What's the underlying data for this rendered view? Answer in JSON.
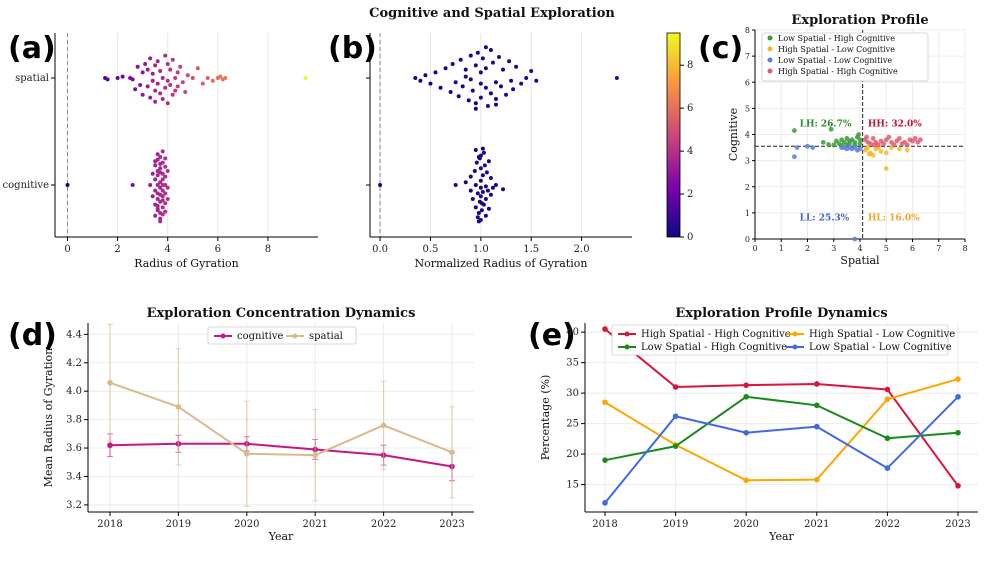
{
  "figure_title": "Cognitive and Spatial Exploration",
  "panel_labels": [
    "(a)",
    "(b)",
    "(c)",
    "(d)",
    "(e)"
  ],
  "chart_data": [
    {
      "id": "a",
      "type": "scatter",
      "title": "",
      "xlabel": "Radius of Gyration",
      "ylabel": "",
      "categories": [
        "spatial",
        "cognitive"
      ],
      "xlim": [
        -0.5,
        10.0
      ],
      "xticks": [
        "0",
        "2",
        "4",
        "6",
        "8"
      ],
      "grid": "vertical",
      "reference_line_x": 0,
      "colormap": "plasma",
      "clim": [
        0,
        9.5
      ],
      "series": [
        {
          "category": "spatial",
          "x": [
            1.5,
            1.6,
            2.0,
            2.2,
            2.5,
            2.6,
            2.7,
            2.8,
            2.9,
            3.0,
            3.0,
            3.1,
            3.2,
            3.2,
            3.3,
            3.3,
            3.4,
            3.4,
            3.5,
            3.5,
            3.5,
            3.6,
            3.6,
            3.7,
            3.7,
            3.8,
            3.8,
            3.9,
            3.9,
            4.0,
            4.0,
            4.0,
            4.1,
            4.1,
            4.2,
            4.2,
            4.3,
            4.3,
            4.4,
            4.4,
            4.5,
            4.6,
            4.7,
            4.8,
            5.0,
            5.2,
            5.4,
            5.6,
            5.8,
            6.0,
            6.1,
            6.2,
            6.3,
            9.5
          ],
          "offset": [
            0.0,
            0.05,
            0.0,
            -0.05,
            0.0,
            0.05,
            0.4,
            -0.4,
            0.25,
            -0.2,
            0.6,
            -0.5,
            0.3,
            -0.3,
            0.7,
            -0.7,
            0.1,
            -0.15,
            0.45,
            -0.45,
            0.85,
            0.2,
            -0.6,
            0.55,
            -0.25,
            0.0,
            0.75,
            -0.8,
            0.35,
            0.1,
            -0.5,
            0.9,
            0.25,
            -0.3,
            0.6,
            -0.65,
            0.0,
            0.45,
            -0.2,
            0.3,
            -0.4,
            0.15,
            0.5,
            -0.1,
            0.0,
            -0.35,
            0.2,
            0.0,
            0.1,
            0.0,
            -0.05,
            0.05,
            0.0,
            0.0
          ]
        },
        {
          "category": "cognitive",
          "x": [
            0.0,
            2.6,
            3.3,
            3.4,
            3.4,
            3.5,
            3.5,
            3.5,
            3.5,
            3.6,
            3.6,
            3.6,
            3.6,
            3.6,
            3.6,
            3.7,
            3.7,
            3.7,
            3.7,
            3.7,
            3.7,
            3.8,
            3.8,
            3.8,
            3.8,
            3.8,
            3.8,
            3.8,
            3.9,
            3.9,
            3.9,
            3.9,
            3.9,
            3.9,
            4.0,
            4.0,
            4.0,
            3.5,
            3.6,
            3.7,
            3.8,
            3.7,
            3.6,
            3.8,
            3.7,
            3.6,
            3.7,
            3.8,
            3.9,
            3.5,
            3.6,
            3.7
          ],
          "offset": [
            0.0,
            0.0,
            0.0,
            0.4,
            -0.4,
            0.2,
            -0.2,
            0.7,
            -0.7,
            0.0,
            0.5,
            -0.5,
            0.9,
            -0.9,
            0.3,
            0.1,
            -0.1,
            0.6,
            -0.6,
            1.0,
            -1.0,
            0.2,
            -0.2,
            0.8,
            -0.8,
            0.4,
            -0.4,
            0.0,
            0.3,
            -0.3,
            0.65,
            -0.65,
            0.95,
            -0.95,
            0.1,
            -0.5,
            0.5,
            1.1,
            -1.1,
            1.2,
            -1.2,
            0.35,
            -0.35,
            1.05,
            -0.75,
            0.75,
            -0.45,
            0.55,
            0.0,
            -0.85,
            0.85,
            1.3
          ]
        }
      ]
    },
    {
      "id": "b",
      "type": "scatter",
      "title": "",
      "xlabel": "Normalized Radius of Gyration",
      "ylabel": "",
      "xlim": [
        -0.1,
        2.5
      ],
      "xticks": [
        "0.0",
        "0.5",
        "1.0",
        "1.5",
        "2.0"
      ],
      "grid": "vertical",
      "reference_line_x": 0,
      "colorbar_ticks": [
        "0",
        "2",
        "4",
        "6",
        "8"
      ],
      "series": [
        {
          "category": "spatial",
          "x": [
            0.35,
            0.4,
            0.45,
            0.5,
            0.55,
            0.6,
            0.65,
            0.7,
            0.72,
            0.75,
            0.78,
            0.8,
            0.82,
            0.85,
            0.88,
            0.9,
            0.9,
            0.92,
            0.95,
            0.95,
            0.97,
            1.0,
            1.0,
            1.0,
            1.02,
            1.05,
            1.05,
            1.07,
            1.1,
            1.1,
            1.12,
            1.15,
            1.15,
            1.18,
            1.2,
            1.22,
            1.25,
            1.28,
            1.3,
            1.32,
            1.35,
            1.4,
            1.45,
            1.5,
            1.55,
            0.95,
            1.05,
            0.85,
            1.15,
            2.35
          ],
          "offset": [
            0.0,
            0.1,
            -0.1,
            0.2,
            -0.2,
            0.35,
            -0.35,
            0.5,
            -0.5,
            0.15,
            0.65,
            -0.65,
            0.3,
            -0.3,
            0.8,
            -0.8,
            0.05,
            0.45,
            -0.45,
            0.9,
            -0.9,
            0.2,
            -0.2,
            0.7,
            -0.7,
            0.35,
            -0.35,
            1.0,
            -1.0,
            0.55,
            -0.55,
            0.15,
            0.75,
            -0.75,
            0.3,
            -0.3,
            0.6,
            -0.6,
            0.1,
            0.4,
            -0.4,
            0.2,
            0.0,
            -0.25,
            0.1,
            1.1,
            -1.1,
            -0.05,
            0.95,
            0.0
          ]
        },
        {
          "category": "cognitive",
          "x": [
            0.0,
            0.75,
            0.85,
            0.9,
            0.9,
            0.92,
            0.94,
            0.95,
            0.95,
            0.96,
            0.97,
            0.98,
            0.98,
            0.99,
            1.0,
            1.0,
            1.0,
            1.0,
            1.01,
            1.02,
            1.02,
            1.03,
            1.04,
            1.05,
            1.05,
            1.06,
            1.07,
            1.08,
            1.08,
            1.1,
            1.1,
            1.12,
            1.15,
            1.22,
            0.97,
            1.0,
            1.03,
            0.95,
            1.05,
            0.99,
            1.01,
            0.98,
            1.02,
            1.0
          ],
          "offset": [
            0.0,
            0.0,
            -0.1,
            0.2,
            -0.3,
            0.5,
            -0.5,
            0.0,
            0.8,
            -0.8,
            0.3,
            1.0,
            -1.0,
            0.6,
            0.1,
            -0.15,
            0.4,
            -0.6,
            0.9,
            0.25,
            -0.35,
            0.7,
            -0.7,
            0.05,
            0.5,
            -0.45,
            0.2,
            0.85,
            -0.85,
            0.35,
            -0.25,
            0.1,
            0.0,
            0.15,
            1.15,
            1.25,
            -1.15,
            -1.25,
            1.1,
            -0.95,
            0.65,
            1.3,
            -1.3,
            -1.05
          ]
        }
      ]
    },
    {
      "id": "c",
      "type": "scatter",
      "title": "Exploration Profile",
      "xlabel": "Spatial",
      "ylabel": "Cognitive",
      "xlim": [
        0,
        8
      ],
      "ylim": [
        0,
        8
      ],
      "xticks": [
        "0",
        "1",
        "2",
        "3",
        "4",
        "5",
        "6",
        "7",
        "8"
      ],
      "yticks": [
        "0",
        "1",
        "2",
        "3",
        "4",
        "5",
        "6",
        "7",
        "8"
      ],
      "threshold_x": 4.1,
      "threshold_y": 3.55,
      "grid": true,
      "legend": "top-left",
      "series": [
        {
          "name": "Low Spatial - High Cognitive",
          "color": "#3a9a3a",
          "x": [
            1.5,
            2.6,
            2.9,
            3.0,
            3.1,
            3.2,
            3.3,
            3.4,
            3.5,
            3.5,
            3.6,
            3.6,
            3.7,
            3.8,
            3.9,
            4.0,
            4.0,
            3.8,
            3.3,
            2.8,
            3.95
          ],
          "y": [
            4.15,
            3.7,
            4.2,
            3.6,
            3.75,
            3.65,
            3.8,
            3.7,
            3.85,
            3.6,
            3.75,
            3.65,
            3.8,
            3.7,
            3.9,
            3.8,
            3.65,
            3.6,
            3.58,
            3.62,
            4.0
          ]
        },
        {
          "name": "High Spatial - Low Cognitive",
          "color": "#f5b82e",
          "x": [
            4.2,
            4.3,
            4.4,
            4.5,
            4.6,
            4.8,
            5.0,
            5.2,
            5.5,
            5.8,
            4.35,
            4.7,
            5.0,
            4.25
          ],
          "y": [
            3.4,
            3.5,
            3.3,
            3.2,
            3.45,
            3.35,
            2.7,
            3.5,
            3.45,
            3.4,
            3.25,
            3.5,
            3.3,
            3.45
          ]
        },
        {
          "name": "Low Spatial - Low Cognitive",
          "color": "#5b7fe0",
          "x": [
            1.5,
            1.6,
            2.0,
            2.2,
            3.4,
            3.5,
            3.6,
            3.7,
            3.8,
            3.9,
            4.0,
            3.3,
            3.8
          ],
          "y": [
            3.15,
            3.5,
            3.55,
            3.5,
            3.5,
            3.45,
            3.5,
            3.45,
            3.5,
            3.4,
            3.45,
            3.5,
            0.0
          ]
        },
        {
          "name": "High Spatial - High Cognitive",
          "color": "#e05a6e",
          "x": [
            4.2,
            4.3,
            4.4,
            4.5,
            4.6,
            4.7,
            4.8,
            4.9,
            5.0,
            5.1,
            5.2,
            5.3,
            5.4,
            5.5,
            5.6,
            5.7,
            5.8,
            5.9,
            6.0,
            6.1,
            6.2,
            6.3,
            4.25,
            4.55
          ],
          "y": [
            3.8,
            3.7,
            3.65,
            3.85,
            3.7,
            3.6,
            3.75,
            3.65,
            3.8,
            3.9,
            3.7,
            3.6,
            3.75,
            3.85,
            3.65,
            3.7,
            3.6,
            3.8,
            3.75,
            3.85,
            3.7,
            3.8,
            3.9,
            3.6
          ]
        }
      ],
      "annotations": [
        {
          "text": "LH: 26.7%",
          "x": 1.7,
          "y": 4.3,
          "color": "#2a8a2a"
        },
        {
          "text": "HH: 32.0%",
          "x": 4.3,
          "y": 4.3,
          "color": "#c8102e"
        },
        {
          "text": "LL: 25.3%",
          "x": 1.7,
          "y": 0.7,
          "color": "#3a66d8"
        },
        {
          "text": "HL: 16.0%",
          "x": 4.3,
          "y": 0.7,
          "color": "#f5a623"
        }
      ]
    },
    {
      "id": "d",
      "type": "line",
      "title": "Exploration Concentration Dynamics",
      "xlabel": "Year",
      "ylabel": "Mean Radius of Gyration",
      "x": [
        2018,
        2019,
        2020,
        2021,
        2022,
        2023
      ],
      "ylim": [
        3.15,
        4.48
      ],
      "yticks": [
        "3.2",
        "3.4",
        "3.6",
        "3.8",
        "4.0",
        "4.2",
        "4.4"
      ],
      "grid": true,
      "legend": "top-center",
      "series": [
        {
          "name": "cognitive",
          "color": "#c71585",
          "values": [
            3.62,
            3.63,
            3.63,
            3.59,
            3.55,
            3.47
          ],
          "err": [
            0.08,
            0.06,
            0.05,
            0.07,
            0.07,
            0.1
          ]
        },
        {
          "name": "spatial",
          "color": "#dbb98b",
          "values": [
            4.06,
            3.89,
            3.56,
            3.55,
            3.76,
            3.57
          ],
          "err": [
            0.41,
            0.41,
            0.37,
            0.32,
            0.31,
            0.32
          ]
        }
      ]
    },
    {
      "id": "e",
      "type": "line",
      "title": "Exploration Profile Dynamics",
      "xlabel": "Year",
      "ylabel": "Percentage (%)",
      "x": [
        2018,
        2019,
        2020,
        2021,
        2022,
        2023
      ],
      "ylim": [
        10.5,
        41.5
      ],
      "yticks": [
        "15",
        "20",
        "25",
        "30",
        "35",
        "40"
      ],
      "grid": true,
      "legend": "top",
      "series": [
        {
          "name": "High Spatial - High Cognitive",
          "color": "#dc143c",
          "values": [
            40.5,
            31.0,
            31.3,
            31.5,
            30.6,
            14.8
          ]
        },
        {
          "name": "High Spatial - Low Cognitive",
          "color": "#ffa500",
          "values": [
            28.5,
            21.5,
            15.7,
            15.8,
            29.0,
            32.3
          ]
        },
        {
          "name": "Low Spatial - High Cognitive",
          "color": "#1a8a1a",
          "values": [
            19.0,
            21.3,
            29.4,
            28.0,
            22.6,
            23.5
          ]
        },
        {
          "name": "Low Spatial - Low Cognitive",
          "color": "#4169e1",
          "values": [
            12.0,
            26.2,
            23.5,
            24.5,
            17.7,
            29.4
          ]
        }
      ]
    }
  ]
}
